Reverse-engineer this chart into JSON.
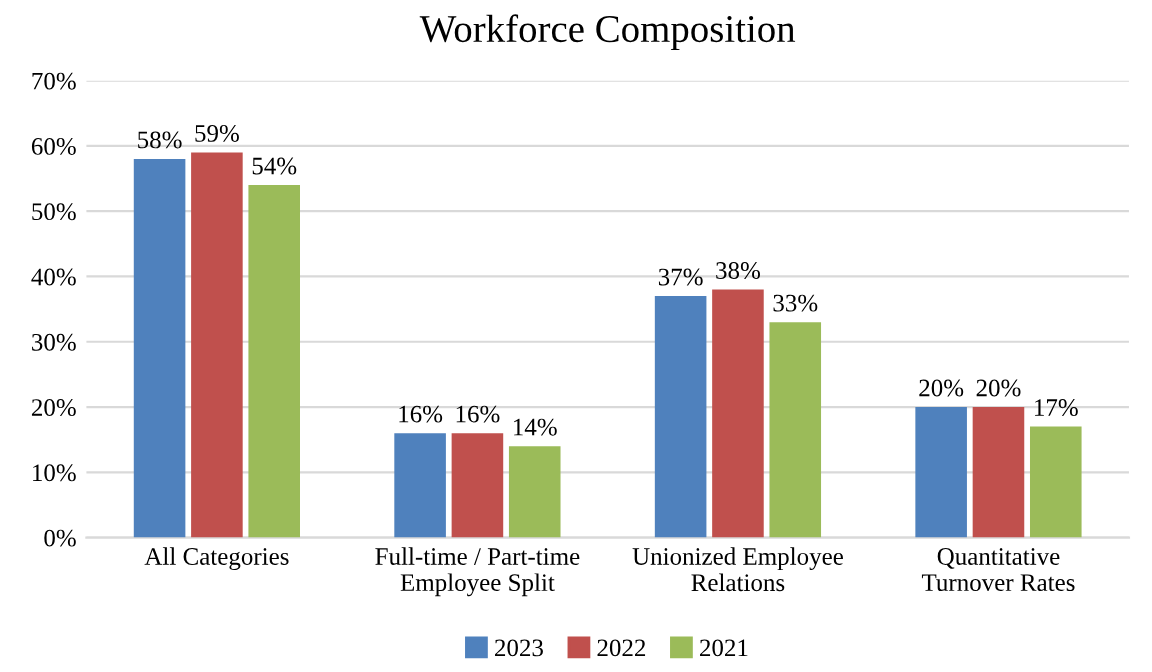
{
  "chart_data": {
    "type": "bar",
    "title": "Workforce Composition",
    "categories": [
      "All Categories",
      "Full-time / Part-time Employee Split",
      "Unionized Employee Relations",
      "Quantitative Turnover Rates"
    ],
    "series": [
      {
        "name": "2023",
        "color": "#4f81bd",
        "values": [
          58,
          16,
          37,
          20
        ],
        "value_labels": [
          "58%",
          "16%",
          "37%",
          "20%"
        ]
      },
      {
        "name": "2022",
        "color": "#c0504d",
        "values": [
          59,
          16,
          38,
          20
        ],
        "value_labels": [
          "59%",
          "16%",
          "38%",
          "20%"
        ]
      },
      {
        "name": "2021",
        "color": "#9bbb59",
        "values": [
          54,
          14,
          33,
          17
        ],
        "value_labels": [
          "54%",
          "14%",
          "33%",
          "17%"
        ]
      }
    ],
    "ylim": [
      0,
      70
    ],
    "yticks": [
      {
        "value": 0,
        "label": "0%"
      },
      {
        "value": 10,
        "label": "10%"
      },
      {
        "value": 20,
        "label": "20%"
      },
      {
        "value": 30,
        "label": "30%"
      },
      {
        "value": 40,
        "label": "40%"
      },
      {
        "value": 50,
        "label": "50%"
      },
      {
        "value": 60,
        "label": "60%"
      },
      {
        "value": 70,
        "label": "70%"
      }
    ],
    "grid": "y",
    "legend": "bottom"
  }
}
